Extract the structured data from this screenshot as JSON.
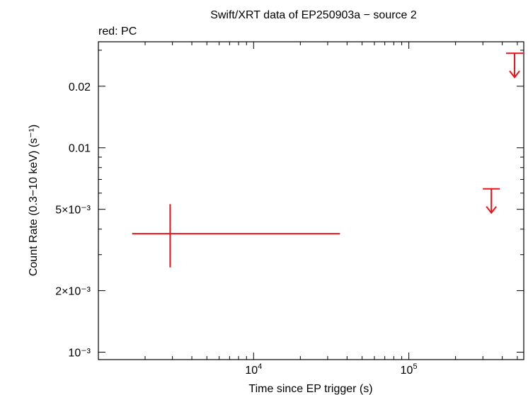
{
  "chart_data": {
    "type": "scatter",
    "title": "Swift/XRT data of EP250903a − source 2",
    "subtitle": "red: PC",
    "xlabel": "Time since EP trigger (s)",
    "ylabel": "Count Rate (0.3−10 keV) (s⁻¹)",
    "x_scale": "log",
    "y_scale": "log",
    "xlim": [
      1000,
      550000
    ],
    "ylim": [
      0.00092,
      0.033
    ],
    "x_ticks": [
      {
        "value": 10000,
        "base": "10",
        "exp": "4"
      },
      {
        "value": 100000,
        "base": "10",
        "exp": "5"
      }
    ],
    "y_ticks": [
      {
        "value": 0.02,
        "label": "0.02"
      },
      {
        "value": 0.01,
        "label": "0.01"
      },
      {
        "value": 0.005,
        "label": "5×10⁻³"
      },
      {
        "value": 0.002,
        "label": "2×10⁻³"
      },
      {
        "value": 0.001,
        "label": "10⁻³"
      }
    ],
    "series": [
      {
        "name": "PC",
        "color": "#e8141b",
        "points": [
          {
            "x": 2900,
            "x_lo": 1650,
            "x_hi": 36000,
            "y": 0.0038,
            "y_lo": 0.0026,
            "y_hi": 0.0053
          }
        ],
        "upper_limits": [
          {
            "x": 340000,
            "y": 0.0063
          },
          {
            "x": 480000,
            "y": 0.029
          }
        ]
      }
    ],
    "grid": false,
    "legend": "none"
  }
}
